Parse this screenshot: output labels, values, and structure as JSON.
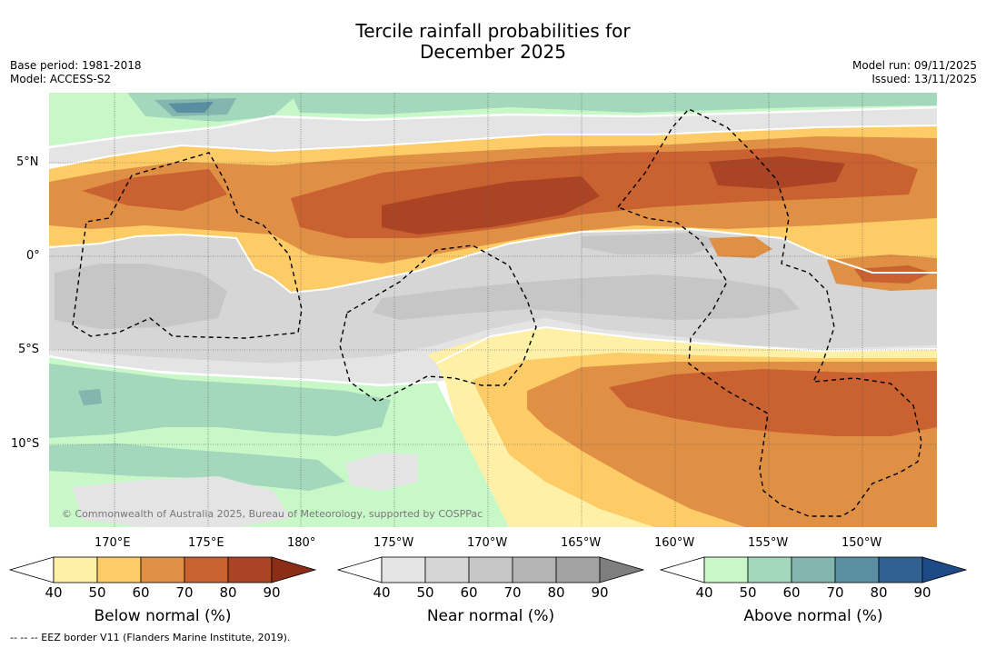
{
  "title_line1": "Tercile rainfall probabilities for",
  "title_line2": "December 2025",
  "base_period": "Base period: 1981-2018",
  "model": "Model: ACCESS-S2",
  "model_run": "Model run: 09/11/2025",
  "issued": "Issued: 13/11/2025",
  "copyright": "© Commonwealth of Australia 2025, Bureau of Meteorology, supported by COSPPac",
  "footnote": "--  --  -- EEZ border V11 (Flanders Marine Institute, 2019).",
  "lat_labels": [
    "5°N",
    "0°",
    "5°S",
    "10°S"
  ],
  "lon_labels": [
    "170°E",
    "175°E",
    "180°",
    "175°W",
    "170°W",
    "165°W",
    "160°W",
    "155°W",
    "150°W"
  ],
  "colorbars": [
    {
      "title": "Below normal (%)",
      "ticks": [
        "40",
        "50",
        "60",
        "70",
        "80",
        "90"
      ],
      "colors": [
        "#fff0a8",
        "#fdcc66",
        "#e09044",
        "#c96130",
        "#ab4425"
      ],
      "extend_color": "#8c2d18"
    },
    {
      "title": "Near normal (%)",
      "ticks": [
        "40",
        "50",
        "60",
        "70",
        "80",
        "90"
      ],
      "colors": [
        "#e4e4e4",
        "#d6d6d6",
        "#c6c6c6",
        "#b4b4b4",
        "#a2a2a2"
      ],
      "extend_color": "#7e7e7e"
    },
    {
      "title": "Above normal (%)",
      "ticks": [
        "40",
        "50",
        "60",
        "70",
        "80",
        "90"
      ],
      "colors": [
        "#c8f8c8",
        "#a3d8bc",
        "#82b6ae",
        "#5a8fa2",
        "#316190"
      ],
      "extend_color": "#1e4a88"
    }
  ],
  "colors": {
    "white": "#ffffff",
    "eez_border": "#000000"
  }
}
